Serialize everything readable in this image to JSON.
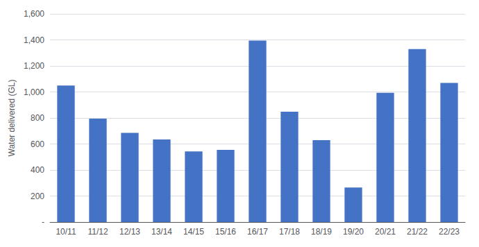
{
  "chart_data": {
    "type": "bar",
    "ylabel": "Water delivered (GL)",
    "categories": [
      "10/11",
      "11/12",
      "12/13",
      "13/14",
      "14/15",
      "15/16",
      "16/17",
      "17/18",
      "18/19",
      "19/20",
      "20/21",
      "21/22",
      "22/23"
    ],
    "values": [
      1050,
      795,
      685,
      635,
      543,
      555,
      1395,
      848,
      630,
      265,
      993,
      1330,
      1070
    ],
    "color": "#4472C4",
    "ylim": [
      0,
      1600
    ],
    "yticks": [
      {
        "value": 0,
        "label": "-"
      },
      200,
      400,
      600,
      800,
      {
        "value": 1000,
        "label": "1,000"
      },
      {
        "value": 1200,
        "label": "1,200"
      },
      {
        "value": 1400,
        "label": "1,400"
      },
      {
        "value": 1600,
        "label": "1,600"
      }
    ],
    "grid": true
  }
}
